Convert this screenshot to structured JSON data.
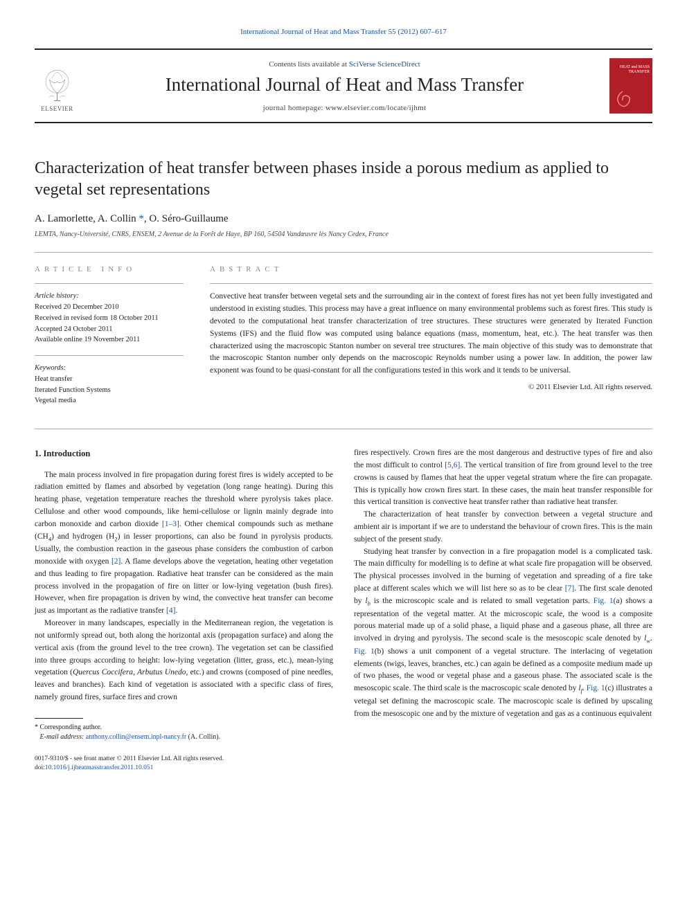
{
  "journal_ref": "International Journal of Heat and Mass Transfer 55 (2012) 607–617",
  "masthead": {
    "contents_prefix": "Contents lists available at ",
    "contents_link": "SciVerse ScienceDirect",
    "journal_title": "International Journal of Heat and Mass Transfer",
    "homepage": "journal homepage: www.elsevier.com/locate/ijhmt",
    "publisher_name": "ELSEVIER",
    "cover_text": "HEAT and MASS TRANSFER",
    "colors": {
      "elsevier_orange": "#e9701e",
      "cover_red": "#b01e28"
    }
  },
  "article": {
    "title": "Characterization of heat transfer between phases inside a porous medium as applied to vegetal set representations",
    "authors_html": "A. Lamorlette, A. Collin <span class=\"corr\">*</span>, O. Séro-Guillaume",
    "affiliation": "LEMTA, Nancy-Université, CNRS, ENSEM, 2 Avenue de la Forêt de Haye, BP 160, 54504 Vandœuvre lès Nancy Cedex, France"
  },
  "info": {
    "heading": "ARTICLE INFO",
    "history_label": "Article history:",
    "history_lines": [
      "Received 20 December 2010",
      "Received in revised form 18 October 2011",
      "Accepted 24 October 2011",
      "Available online 19 November 2011"
    ],
    "keywords_label": "Keywords:",
    "keywords": [
      "Heat transfer",
      "Iterated Function Systems",
      "Vegetal media"
    ]
  },
  "abstract": {
    "heading": "ABSTRACT",
    "text": "Convective heat transfer between vegetal sets and the surrounding air in the context of forest fires has not yet been fully investigated and understood in existing studies. This process may have a great influence on many environmental problems such as forest fires. This study is devoted to the computational heat transfer characterization of tree structures. These structures were generated by Iterated Function Systems (IFS) and the fluid flow was computed using balance equations (mass, momentum, heat, etc.). The heat transfer was then characterized using the macroscopic Stanton number on several tree structures. The main objective of this study was to demonstrate that the macroscopic Stanton number only depends on the macroscopic Reynolds number using a power law. In addition, the power law exponent was found to be quasi-constant for all the configurations tested in this work and it tends to be universal.",
    "copyright": "© 2011 Elsevier Ltd. All rights reserved."
  },
  "body": {
    "section_title": "1. Introduction",
    "left_paragraphs": [
      "The main process involved in fire propagation during forest fires is widely accepted to be radiation emitted by flames and absorbed by vegetation (long range heating). During this heating phase, vegetation temperature reaches the threshold where pyrolysis takes place. Cellulose and other wood compounds, like hemi-cellulose or lignin mainly degrade into carbon monoxide and carbon dioxide <span class=\"ref-link\">[1–3]</span>. Other chemical compounds such as methane (CH<sub>4</sub>) and hydrogen (H<sub>2</sub>) in lesser proportions, can also be found in pyrolysis products. Usually, the combustion reaction in the gaseous phase considers the combustion of carbon monoxide with oxygen <span class=\"ref-link\">[2]</span>. A flame develops above the vegetation, heating other vegetation and thus leading to fire propagation. Radiative heat transfer can be considered as the main process involved in the propagation of fire on litter or low-lying vegetation (bush fires). However, when fire propagation is driven by wind, the convective heat transfer can become just as important as the radiative transfer <span class=\"ref-link\">[4]</span>.",
      "Moreover in many landscapes, especially in the Mediterranean region, the vegetation is not uniformly spread out, both along the horizontal axis (propagation surface) and along the vertical axis (from the ground level to the tree crown). The vegetation set can be classified into three groups according to height: low-lying vegetation (litter, grass, etc.), mean-lying vegetation (<em>Quercus Coccifera</em>, <em>Arbutus Unedo</em>, etc.) and crowns (composed of pine needles, leaves and branches). Each kind of vegetation is associated with a specific class of fires, namely ground fires, surface fires and crown"
    ],
    "right_paragraphs": [
      "fires respectively. Crown fires are the most dangerous and destructive types of fire and also the most difficult to control <span class=\"ref-link\">[5,6]</span>. The vertical transition of fire from ground level to the tree crowns is caused by flames that heat the upper vegetal stratum where the fire can propagate. This is typically how crown fires start. In these cases, the main heat transfer responsible for this vertical transition is convective heat transfer rather than radiative heat transfer.",
      "The characterization of heat transfer by convection between a vegetal structure and ambient air is important if we are to understand the behaviour of crown fires. This is the main subject of the present study.",
      "Studying heat transfer by convection in a fire propagation model is a complicated task. The main difficulty for modelling is to define at what scale fire propagation will be observed. The physical processes involved in the burning of vegetation and spreading of a fire take place at different scales which we will list here so as to be clear <span class=\"ref-link\">[7]</span>. The first scale denoted by <em>l<sub>b</sub></em> is the microscopic scale and is related to small vegetation parts. <span class=\"fig-link\">Fig. 1</span>(a) shows a representation of the vegetal matter. At the microscopic scale, the wood is a composite porous material made up of a solid phase, a liquid phase and a gaseous phase, all three are involved in drying and pyrolysis. The second scale is the mesoscopic scale denoted by <em>l<sub>w</sub></em>. <span class=\"fig-link\">Fig. 1</span>(b) shows a unit component of a vegetal structure. The interlacing of vegetation elements (twigs, leaves, branches, etc.) can again be defined as a composite medium made up of two phases, the wood or vegetal phase and a gaseous phase. The associated scale is the mesoscopic scale. The third scale is the macroscopic scale denoted by <em>l<sub>f</sub></em>. <span class=\"fig-link\">Fig. 1</span>(c) illustrates a vetegal set defining the macroscopic scale. The macroscopic scale is defined by upscaling from the mesoscopic one and by the mixture of vegetation and gas as a continuous equivalent"
    ]
  },
  "footer": {
    "corr_label": "* Corresponding author.",
    "email_label": "E-mail address:",
    "email": "anthony.collin@ensem.inpl-nancy.fr",
    "email_name": "(A. Collin).",
    "issn_line": "0017-9310/$ - see front matter © 2011 Elsevier Ltd. All rights reserved.",
    "doi_label": "doi:",
    "doi": "10.1016/j.ijheatmasstransfer.2011.10.051"
  }
}
